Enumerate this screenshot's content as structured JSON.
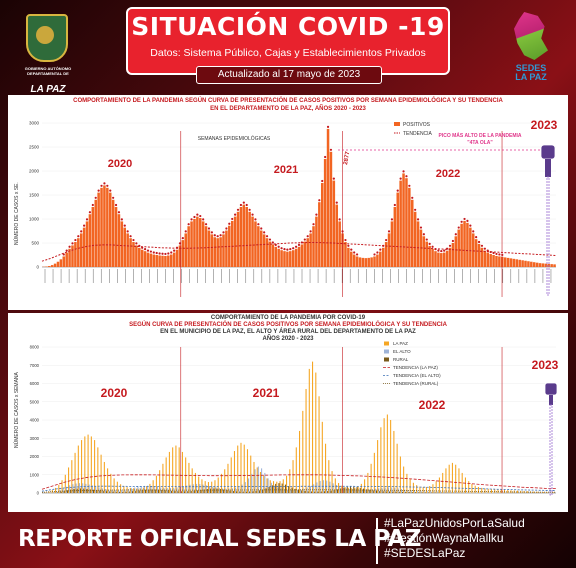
{
  "header": {
    "gov_text": "GOBIERNO AUTÓNOMO DEPARTAMENTAL DE",
    "gov_city": "LA PAZ",
    "title": "SITUACIÓN COVID -19",
    "subtitle": "Datos: Sistema Público, Cajas y Establecimientos Privados",
    "updated": "Actualizado   al   17  mayo  de  2023",
    "sedes_label_1": "SEDES",
    "sedes_label_2": "LA PAZ"
  },
  "panel1": {
    "title_line1": "COMPORTAMIENTO DE LA PANDEMIA SEGÚN CURVA DE PRESENTACIÓN DE CASOS POSITIVOS POR SEMANA EPIDEMIOLÓGICA Y SU TENDENCIA",
    "title_line2": "EN EL DEPARTAMENTO DE LA PAZ, AÑOS 2020 - 2023",
    "legend_positivos": "POSITIVOS",
    "legend_tendencia": "TENDENCIA",
    "xlabel": "SEMANAS EPIDEMIOLÓGICAS",
    "ylabel": "NÚMERO DE CASOS x SE.",
    "peak_note_1": "PICO MÁS ALTO DE LA PANDEMIA",
    "peak_note_2": "\"4TA OLA\"",
    "peak_label": "2877",
    "year_labels": [
      "2020",
      "2021",
      "2022",
      "2023"
    ]
  },
  "panel2": {
    "title_line1": "COMPORTAMIENTO DE LA PANDEMIA POR COVID-19",
    "title_line2": "SEGÚN CURVA DE PRESENTACIÓN DE CASOS POSITIVOS POR SEMANA EPIDEMIOLÓGICA Y SU TENDENCIA",
    "title_line3": "EN EL   MUNICIPIO DE LA PAZ, EL ALTO Y ÁREA RURAL DEL DEPARTAMENTO DE LA PAZ",
    "title_line4": "AÑOS 2020 - 2023",
    "ylabel": "NÚMERO DE CASOS x SEMANA",
    "legend": [
      "LA PAZ",
      "EL ALTO",
      "RURAL",
      "TENDENCIA (LA PAZ)",
      "TENDENCIA (EL ALTO)",
      "TENDENCIA (RURAL)"
    ],
    "year_labels": [
      "2020",
      "2021",
      "2022",
      "2023"
    ]
  },
  "footer": {
    "main": "REPORTE OFICIAL SEDES LA PAZ",
    "tags": [
      "#LaPazUnidosPorLaSalud",
      "#GestiónWaynaMallku",
      "#SEDESLaPaz"
    ]
  },
  "colors": {
    "bar_orange": "#f26522",
    "trend_red": "#c51a1f",
    "la_paz": "#f5a623",
    "el_alto": "#9fb4d8",
    "rural": "#7a5a1a",
    "title_red": "#e8222d"
  },
  "chart_data": [
    {
      "type": "bar",
      "title": "COMPORTAMIENTO DE LA PANDEMIA SEGÚN CURVA DE PRESENTACIÓN DE CASOS POSITIVOS POR SEMANA EPIDEMIOLÓGICA Y SU TENDENCIA EN EL DEPARTAMENTO DE LA PAZ, AÑOS 2020 - 2023",
      "xlabel": "SEMANAS EPIDEMIOLÓGICAS",
      "ylabel": "NÚMERO DE CASOS x SE.",
      "ylim": [
        0,
        3000
      ],
      "yticks": [
        0,
        500,
        1000,
        1500,
        2000,
        2500,
        3000
      ],
      "series": [
        {
          "name": "POSITIVOS",
          "values": [
            5,
            10,
            20,
            40,
            70,
            110,
            160,
            220,
            300,
            380,
            450,
            520,
            600,
            700,
            820,
            950,
            1100,
            1250,
            1400,
            1550,
            1650,
            1700,
            1650,
            1550,
            1400,
            1250,
            1100,
            950,
            820,
            700,
            600,
            520,
            450,
            400,
            360,
            330,
            300,
            280,
            260,
            250,
            240,
            235,
            230,
            240,
            260,
            300,
            360,
            450,
            560,
            700,
            850,
            950,
            1000,
            1050,
            1020,
            950,
            850,
            760,
            680,
            620,
            600,
            620,
            680,
            760,
            860,
            960,
            1050,
            1150,
            1250,
            1300,
            1250,
            1150,
            1050,
            950,
            850,
            760,
            680,
            600,
            530,
            470,
            420,
            380,
            350,
            330,
            320,
            330,
            350,
            380,
            420,
            470,
            530,
            600,
            700,
            850,
            1050,
            1350,
            1750,
            2250,
            2877,
            2400,
            1800,
            1300,
            950,
            700,
            520,
            400,
            320,
            260,
            220,
            200,
            190,
            185,
            190,
            200,
            220,
            260,
            320,
            400,
            520,
            700,
            950,
            1250,
            1550,
            1800,
            1950,
            1850,
            1650,
            1400,
            1150,
            950,
            780,
            640,
            530,
            440,
            380,
            330,
            300,
            290,
            300,
            340,
            400,
            500,
            640,
            780,
            900,
            960,
            920,
            820,
            700,
            580,
            480,
            400,
            340,
            300,
            270,
            250,
            230,
            220,
            210,
            200,
            190,
            180,
            170,
            160,
            150,
            140,
            130,
            120,
            110,
            100,
            90,
            80,
            75,
            70,
            65,
            60,
            55
          ]
        },
        {
          "name": "TENDENCIA",
          "values": [
            120,
            180,
            250,
            320,
            380,
            420,
            450,
            460,
            460,
            450,
            440,
            430,
            420,
            410,
            400,
            395,
            390,
            390,
            395,
            400,
            410,
            420,
            430,
            440,
            450,
            460,
            470,
            480,
            490,
            500,
            505,
            510,
            510,
            505,
            500,
            490,
            480,
            470,
            460,
            450,
            440,
            430,
            420,
            410,
            400,
            390,
            380,
            370,
            360,
            350,
            340,
            330,
            320,
            310,
            300,
            290,
            280,
            270,
            260,
            250,
            240
          ]
        }
      ]
    },
    {
      "type": "bar",
      "title": "COMPORTAMIENTO DE LA PANDEMIA POR COVID-19 SEGÚN CURVA DE PRESENTACIÓN DE CASOS POSITIVOS POR SEMANA EPIDEMIOLÓGICA Y SU TENDENCIA EN EL MUNICIPIO DE LA PAZ, EL ALTO Y ÁREA RURAL DEL DEPARTAMENTO DE LA PAZ AÑOS 2020 - 2023",
      "ylabel": "NÚMERO DE CASOS x SEMANA",
      "ylim": [
        0,
        8000
      ],
      "yticks": [
        0,
        1000,
        2000,
        3000,
        4000,
        5000,
        6000,
        7000,
        8000
      ],
      "series": [
        {
          "name": "LA PAZ",
          "values": [
            10,
            30,
            80,
            160,
            280,
            450,
            700,
            1000,
            1400,
            1800,
            2200,
            2600,
            2900,
            3100,
            3200,
            3100,
            2900,
            2500,
            2100,
            1700,
            1350,
            1050,
            800,
            620,
            480,
            380,
            320,
            280,
            260,
            250,
            260,
            300,
            380,
            500,
            700,
            950,
            1250,
            1600,
            1950,
            2250,
            2500,
            2600,
            2500,
            2250,
            1950,
            1650,
            1350,
            1100,
            900,
            750,
            650,
            600,
            620,
            700,
            850,
            1050,
            1300,
            1600,
            1950,
            2300,
            2600,
            2750,
            2650,
            2400,
            2050,
            1700,
            1400,
            1150,
            950,
            800,
            700,
            650,
            620,
            650,
            750,
            950,
            1300,
            1800,
            2500,
            3400,
            4500,
            5700,
            6800,
            7200,
            6600,
            5300,
            3900,
            2700,
            1800,
            1200,
            800,
            550,
            400,
            320,
            280,
            260,
            280,
            350,
            500,
            750,
            1100,
            1600,
            2200,
            2900,
            3600,
            4100,
            4300,
            4000,
            3400,
            2700,
            2000,
            1450,
            1050,
            760,
            560,
            430,
            350,
            320,
            330,
            380,
            480,
            640,
            850,
            1100,
            1350,
            1550,
            1650,
            1550,
            1350,
            1100,
            850,
            650,
            500,
            400,
            330,
            280,
            250,
            230,
            210,
            200,
            190,
            180,
            170,
            160,
            150,
            140,
            130,
            120,
            110,
            100,
            90,
            80,
            70,
            60,
            50,
            45,
            40,
            35
          ]
        },
        {
          "name": "EL ALTO",
          "values": [
            5,
            10,
            30,
            60,
            110,
            180,
            260,
            340,
            420,
            480,
            520,
            540,
            530,
            500,
            460,
            410,
            360,
            310,
            260,
            220,
            190,
            170,
            160,
            160,
            170,
            190,
            220,
            260,
            300,
            340,
            370,
            390,
            400,
            390,
            360,
            330,
            300,
            280,
            270,
            270,
            280,
            300,
            330,
            370,
            410,
            450,
            480,
            500,
            490,
            460,
            420,
            380,
            340,
            300,
            270,
            250,
            240,
            240,
            260,
            300,
            360,
            460,
            600,
            800,
            1050,
            1300,
            1450,
            1350,
            1100,
            800,
            560,
            400,
            300,
            240,
            200,
            180,
            170,
            170,
            180,
            200,
            240,
            300,
            380,
            480,
            580,
            660,
            700,
            680,
            620,
            530,
            440,
            360,
            300,
            250,
            220,
            200,
            190,
            180,
            180,
            190,
            200,
            220,
            240,
            260,
            280,
            300,
            310,
            300,
            280,
            250,
            220,
            190,
            170,
            150,
            130,
            120,
            110,
            100,
            95,
            90,
            85,
            80,
            75,
            70,
            65,
            60,
            55,
            50,
            45,
            40,
            35,
            30,
            28,
            26,
            24,
            22,
            20,
            18,
            16,
            15,
            14,
            13,
            12,
            11,
            10,
            9,
            8,
            7,
            6,
            6,
            5,
            5,
            5,
            5,
            4,
            4,
            4,
            4,
            3,
            3
          ]
        },
        {
          "name": "RURAL",
          "values": [
            2,
            5,
            10,
            20,
            40,
            70,
            110,
            150,
            190,
            220,
            240,
            250,
            240,
            220,
            200,
            180,
            160,
            140,
            120,
            100,
            90,
            80,
            75,
            70,
            70,
            75,
            85,
            100,
            120,
            140,
            160,
            180,
            190,
            195,
            190,
            180,
            165,
            150,
            135,
            120,
            110,
            100,
            95,
            95,
            100,
            110,
            125,
            145,
            170,
            195,
            220,
            240,
            250,
            240,
            220,
            190,
            160,
            130,
            110,
            95,
            85,
            80,
            80,
            85,
            95,
            115,
            145,
            190,
            250,
            330,
            420,
            500,
            540,
            520,
            460,
            380,
            300,
            230,
            180,
            140,
            110,
            95,
            85,
            80,
            80,
            85,
            95,
            110,
            130,
            160,
            200,
            250,
            300,
            340,
            360,
            350,
            320,
            280,
            240,
            200,
            170,
            140,
            120,
            105,
            95,
            90,
            85,
            80,
            75,
            70,
            65,
            60,
            55,
            50,
            45,
            40,
            38,
            36,
            34,
            32,
            30,
            28,
            26,
            24,
            22,
            20,
            18,
            16,
            15,
            14,
            13,
            12,
            11,
            10,
            9,
            8,
            8,
            7,
            7,
            6,
            6,
            5,
            5,
            5,
            4,
            4,
            4,
            3,
            3,
            3,
            3,
            2,
            2,
            2,
            2,
            2,
            2,
            2,
            2,
            2,
            2,
            2,
            2
          ]
        },
        {
          "name": "TENDENCIA (LA PAZ)",
          "values": [
            200,
            400,
            600,
            750,
            860,
            930,
            970,
            990,
            1000,
            1000,
            990,
            980,
            970,
            960,
            955,
            950,
            950,
            955,
            960,
            970,
            980,
            990,
            1000,
            1000,
            995,
            985,
            970,
            950,
            930,
            900,
            870,
            830,
            790,
            740,
            690,
            640,
            590,
            540,
            490,
            440,
            400,
            360,
            320,
            290,
            260,
            240
          ]
        },
        {
          "name": "TENDENCIA (EL ALTO)",
          "values": [
            100,
            200,
            280,
            330,
            360,
            370,
            370,
            365,
            360,
            355,
            350,
            348,
            346,
            345,
            345,
            346,
            348,
            350,
            352,
            355,
            357,
            360,
            362,
            365,
            366,
            367,
            367,
            366,
            364,
            360,
            354,
            346,
            336,
            324,
            310,
            294,
            276,
            258,
            240,
            222,
            204,
            188,
            172,
            158,
            145,
            134
          ]
        },
        {
          "name": "TENDENCIA (RURAL)",
          "values": [
            40,
            80,
            110,
            130,
            145,
            155,
            160,
            162,
            163,
            163,
            162,
            161,
            160,
            160,
            160,
            161,
            162,
            164,
            166,
            168,
            170,
            172,
            173,
            174,
            174,
            173,
            171,
            168,
            164,
            159,
            153,
            146,
            138,
            130,
            121,
            112,
            103,
            94,
            85,
            77,
            70,
            63,
            57,
            52,
            47,
            43
          ]
        }
      ]
    }
  ]
}
